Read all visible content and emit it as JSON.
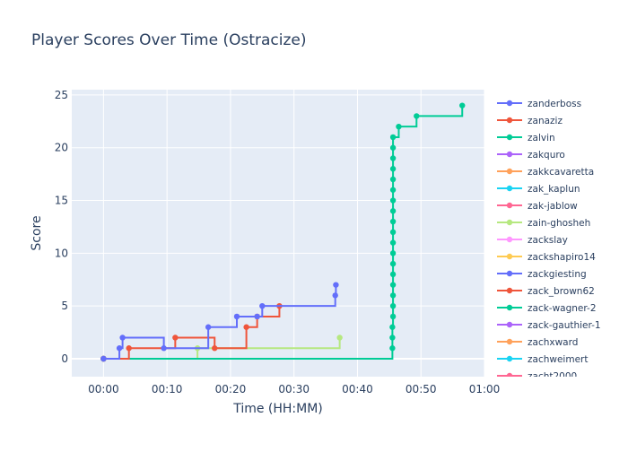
{
  "chart_data": {
    "type": "line",
    "line_shape": "step",
    "title": "Player Scores Over Time (Ostracize)",
    "xlabel": "Time (HH:MM)",
    "ylabel": "Score",
    "x_unit": "minutes",
    "xlim": [
      -5,
      60
    ],
    "ylim": [
      -1.7,
      25.5
    ],
    "x_ticks": [
      {
        "value": 0,
        "label": "00:00"
      },
      {
        "value": 10,
        "label": "00:10"
      },
      {
        "value": 20,
        "label": "00:20"
      },
      {
        "value": 30,
        "label": "00:30"
      },
      {
        "value": 40,
        "label": "00:40"
      },
      {
        "value": 50,
        "label": "00:50"
      },
      {
        "value": 60,
        "label": "01:00"
      }
    ],
    "y_ticks": [
      0,
      5,
      10,
      15,
      20,
      25
    ],
    "grid": true,
    "legend_position": "right",
    "plot_bg": "#E5ECF6",
    "series": [
      {
        "name": "zanderboss",
        "color": "#636EFA",
        "points": [
          [
            0,
            0
          ],
          [
            2.5,
            1
          ],
          [
            3,
            2
          ],
          [
            9.5,
            1
          ],
          [
            16.5,
            3
          ],
          [
            21,
            4
          ],
          [
            24.2,
            4
          ],
          [
            25,
            5
          ],
          [
            36.5,
            6
          ],
          [
            36.6,
            7
          ]
        ]
      },
      {
        "name": "zanaziz",
        "color": "#EF553B",
        "points": [
          [
            0,
            0
          ],
          [
            4,
            1
          ],
          [
            11.3,
            2
          ],
          [
            17.5,
            1
          ],
          [
            22.5,
            3
          ],
          [
            24.2,
            4
          ],
          [
            27.7,
            5
          ]
        ]
      },
      {
        "name": "zalvin",
        "color": "#00CC96",
        "points": [
          [
            0,
            0
          ],
          [
            45.5,
            1
          ],
          [
            45.5,
            2
          ],
          [
            45.5,
            3
          ],
          [
            45.6,
            4
          ],
          [
            45.6,
            5
          ],
          [
            45.6,
            6
          ],
          [
            45.6,
            7
          ],
          [
            45.6,
            8
          ],
          [
            45.6,
            9
          ],
          [
            45.6,
            10
          ],
          [
            45.6,
            11
          ],
          [
            45.6,
            12
          ],
          [
            45.6,
            13
          ],
          [
            45.6,
            14
          ],
          [
            45.6,
            15
          ],
          [
            45.6,
            16
          ],
          [
            45.6,
            17
          ],
          [
            45.6,
            18
          ],
          [
            45.6,
            19
          ],
          [
            45.6,
            20
          ],
          [
            45.6,
            21
          ],
          [
            46.5,
            22
          ],
          [
            49.3,
            23
          ],
          [
            56.5,
            24
          ]
        ]
      },
      {
        "name": "zakquro",
        "color": "#AB63FA",
        "points": [
          [
            0,
            0
          ]
        ]
      },
      {
        "name": "zakkcavaretta",
        "color": "#FFA15A",
        "points": [
          [
            0,
            0
          ]
        ]
      },
      {
        "name": "zak_kaplun",
        "color": "#19D3F3",
        "points": [
          [
            0,
            0
          ]
        ]
      },
      {
        "name": "zak-jablow",
        "color": "#FF6692",
        "points": [
          [
            0,
            0
          ]
        ]
      },
      {
        "name": "zain-ghosheh",
        "color": "#B6E880",
        "points": [
          [
            0,
            0
          ],
          [
            14.8,
            1
          ],
          [
            37.2,
            2
          ]
        ]
      },
      {
        "name": "zackslay",
        "color": "#FF97FF",
        "points": [
          [
            0,
            0
          ]
        ]
      },
      {
        "name": "zackshapiro14",
        "color": "#FECB52",
        "points": [
          [
            0,
            0
          ]
        ]
      },
      {
        "name": "zackgiesting",
        "color": "#636EFA",
        "points": [
          [
            0,
            0
          ]
        ]
      },
      {
        "name": "zack_brown62",
        "color": "#EF553B",
        "points": [
          [
            0,
            0
          ]
        ]
      },
      {
        "name": "zack-wagner-2",
        "color": "#00CC96",
        "points": [
          [
            0,
            0
          ]
        ]
      },
      {
        "name": "zack-gauthier-1",
        "color": "#AB63FA",
        "points": [
          [
            0,
            0
          ]
        ]
      },
      {
        "name": "zachxward",
        "color": "#FFA15A",
        "points": [
          [
            0,
            0
          ]
        ]
      },
      {
        "name": "zachweimert",
        "color": "#19D3F3",
        "points": [
          [
            0,
            0
          ]
        ]
      },
      {
        "name": "zacht2000",
        "color": "#FF6692",
        "points": [
          [
            0,
            0
          ]
        ]
      }
    ]
  }
}
